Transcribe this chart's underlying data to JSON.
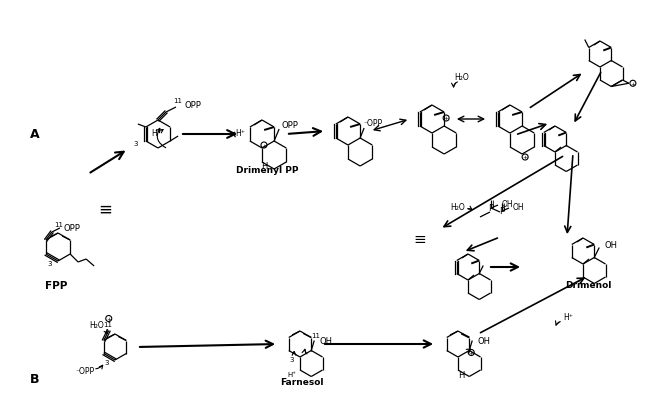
{
  "bg_color": "#ffffff",
  "text_color": "#000000",
  "figsize": [
    6.68,
    4.1
  ],
  "dpi": 100,
  "label_A": "A",
  "label_B": "B",
  "label_FPP": "FPP",
  "label_DrimenylPP": "Drimenyl PP",
  "label_Drimenol": "Drimenol",
  "label_Farnesol": "Farnesol"
}
